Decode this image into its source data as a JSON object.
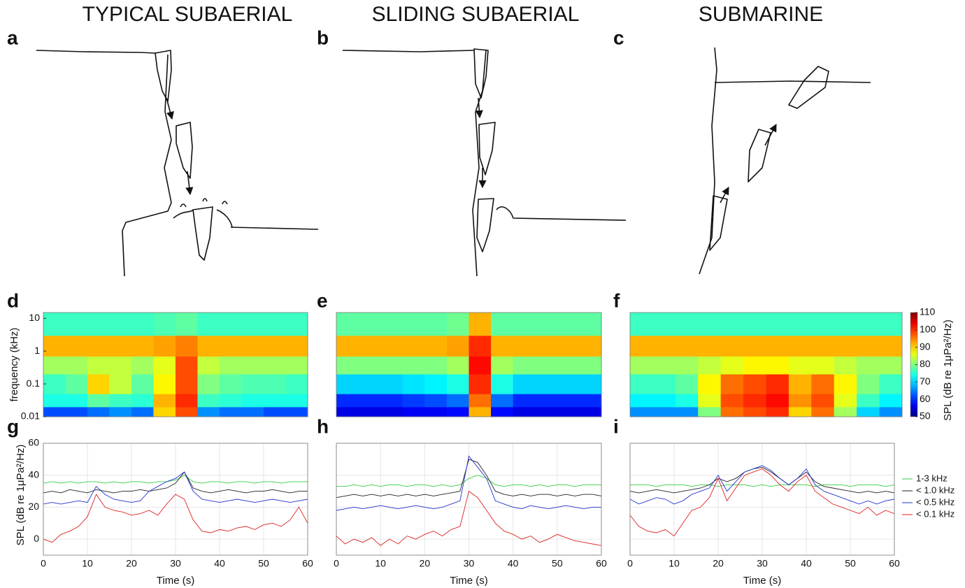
{
  "columns": [
    "TYPICAL SUBAERIAL",
    "SLIDING SUBAERIAL",
    "SUBMARINE"
  ],
  "panel_letters": [
    "a",
    "b",
    "c",
    "d",
    "e",
    "f",
    "g",
    "h",
    "i"
  ],
  "chart_data": [
    {
      "type": "heatmap",
      "ylabel": "frequency (kHz)",
      "yscale": "log",
      "colormap": "jet",
      "xlim": [
        0,
        60
      ],
      "ylim": [
        0.01,
        15
      ],
      "yticks": [
        0.01,
        0.1,
        1,
        10
      ],
      "x_bins": [
        0,
        5,
        10,
        15,
        20,
        25,
        30,
        35,
        40,
        45,
        50,
        55,
        60
      ],
      "y_bins": [
        0.01,
        0.02,
        0.05,
        0.2,
        0.7,
        3,
        15
      ],
      "values": [
        [
          62,
          62,
          64,
          66,
          64,
          90,
          98,
          66,
          64,
          64,
          62,
          62
        ],
        [
          74,
          74,
          78,
          76,
          75,
          92,
          100,
          76,
          75,
          74,
          74,
          74
        ],
        [
          76,
          78,
          90,
          84,
          78,
          88,
          98,
          80,
          78,
          77,
          77,
          76
        ],
        [
          82,
          82,
          84,
          84,
          82,
          86,
          98,
          84,
          82,
          82,
          82,
          82
        ],
        [
          92,
          92,
          92,
          92,
          92,
          93,
          95,
          92,
          92,
          92,
          92,
          92
        ],
        [
          76,
          76,
          76,
          76,
          76,
          77,
          78,
          76,
          76,
          76,
          76,
          76
        ]
      ]
    },
    {
      "type": "heatmap",
      "yscale": "log",
      "colormap": "jet",
      "xlim": [
        0,
        60
      ],
      "ylim": [
        0.01,
        15
      ],
      "x_bins": [
        0,
        5,
        10,
        15,
        20,
        25,
        30,
        35,
        40,
        45,
        50,
        55,
        60
      ],
      "y_bins": [
        0.01,
        0.02,
        0.05,
        0.2,
        0.7,
        3,
        15
      ],
      "values": [
        [
          56,
          56,
          56,
          57,
          57,
          58,
          92,
          58,
          56,
          56,
          56,
          56
        ],
        [
          60,
          60,
          60,
          61,
          62,
          64,
          96,
          64,
          60,
          60,
          60,
          60
        ],
        [
          70,
          70,
          70,
          71,
          72,
          74,
          100,
          74,
          70,
          70,
          70,
          70
        ],
        [
          80,
          80,
          80,
          80,
          80,
          82,
          102,
          82,
          80,
          80,
          80,
          80
        ],
        [
          92,
          92,
          92,
          92,
          92,
          93,
          100,
          92,
          92,
          92,
          92,
          92
        ],
        [
          78,
          78,
          78,
          78,
          78,
          79,
          92,
          78,
          78,
          78,
          78,
          78
        ]
      ]
    },
    {
      "type": "heatmap",
      "yscale": "log",
      "colormap": "jet",
      "xlim": [
        0,
        60
      ],
      "ylim": [
        0.01,
        15
      ],
      "x_bins": [
        0,
        5,
        10,
        15,
        20,
        25,
        30,
        35,
        40,
        45,
        50,
        55,
        60
      ],
      "y_bins": [
        0.01,
        0.02,
        0.05,
        0.2,
        0.7,
        3,
        15
      ],
      "values": [
        [
          66,
          66,
          66,
          80,
          96,
          98,
          100,
          90,
          96,
          82,
          70,
          66
        ],
        [
          72,
          72,
          74,
          86,
          98,
          100,
          102,
          94,
          98,
          86,
          76,
          72
        ],
        [
          76,
          76,
          78,
          88,
          96,
          98,
          100,
          92,
          96,
          88,
          80,
          76
        ],
        [
          82,
          82,
          82,
          84,
          86,
          88,
          88,
          86,
          86,
          84,
          82,
          82
        ],
        [
          92,
          92,
          92,
          92,
          92,
          92,
          92,
          92,
          92,
          92,
          92,
          92
        ],
        [
          76,
          76,
          76,
          76,
          76,
          76,
          76,
          76,
          76,
          76,
          76,
          76
        ]
      ]
    },
    {
      "type": "line",
      "xlabel": "Time (s)",
      "ylabel": "SPL (dB re 1μPa²/Hz)",
      "grid": true,
      "show_ytick_labels": true,
      "xlim": [
        0,
        60
      ],
      "xticks": [
        0,
        10,
        20,
        30,
        40,
        50,
        60
      ],
      "ylim": [
        -10,
        60
      ],
      "yticks": [
        0,
        20,
        40,
        60
      ],
      "x": [
        0,
        2,
        4,
        6,
        8,
        10,
        12,
        14,
        16,
        18,
        20,
        22,
        24,
        26,
        28,
        30,
        32,
        34,
        36,
        38,
        40,
        42,
        44,
        46,
        48,
        50,
        52,
        54,
        56,
        58,
        60
      ],
      "series": [
        {
          "color": "#33cc44",
          "values": [
            35,
            36,
            35,
            36,
            35,
            36,
            36,
            35,
            36,
            35,
            36,
            36,
            35,
            36,
            36,
            37,
            40,
            36,
            35,
            36,
            36,
            35,
            36,
            36,
            35,
            36,
            36,
            35,
            36,
            36,
            36
          ]
        },
        {
          "color": "#222222",
          "values": [
            29,
            30,
            29,
            31,
            30,
            29,
            31,
            30,
            29,
            30,
            30,
            31,
            30,
            31,
            32,
            35,
            42,
            32,
            30,
            29,
            30,
            31,
            30,
            29,
            30,
            30,
            31,
            30,
            29,
            30,
            30
          ]
        },
        {
          "color": "#2233cc",
          "values": [
            22,
            23,
            22,
            23,
            24,
            23,
            33,
            28,
            25,
            24,
            23,
            24,
            30,
            33,
            36,
            38,
            42,
            30,
            25,
            24,
            23,
            24,
            25,
            24,
            23,
            24,
            25,
            24,
            23,
            24,
            25
          ]
        },
        {
          "color": "#dd2222",
          "values": [
            0,
            -2,
            3,
            5,
            8,
            14,
            28,
            20,
            18,
            17,
            15,
            16,
            18,
            15,
            22,
            28,
            25,
            12,
            5,
            4,
            6,
            5,
            7,
            8,
            6,
            9,
            10,
            8,
            12,
            20,
            10
          ]
        }
      ]
    },
    {
      "type": "line",
      "xlabel": "Time (s)",
      "grid": true,
      "show_ytick_labels": false,
      "xlim": [
        0,
        60
      ],
      "xticks": [
        0,
        10,
        20,
        30,
        40,
        50,
        60
      ],
      "ylim": [
        -10,
        60
      ],
      "yticks": [
        0,
        20,
        40,
        60
      ],
      "x": [
        0,
        2,
        4,
        6,
        8,
        10,
        12,
        14,
        16,
        18,
        20,
        22,
        24,
        26,
        28,
        30,
        32,
        34,
        36,
        38,
        40,
        42,
        44,
        46,
        48,
        50,
        52,
        54,
        56,
        58,
        60
      ],
      "series": [
        {
          "color": "#33cc44",
          "values": [
            33,
            33,
            34,
            33,
            34,
            33,
            34,
            34,
            33,
            34,
            34,
            33,
            34,
            33,
            34,
            38,
            40,
            38,
            34,
            33,
            34,
            34,
            33,
            34,
            33,
            34,
            34,
            33,
            34,
            34,
            34
          ]
        },
        {
          "color": "#222222",
          "values": [
            26,
            27,
            28,
            27,
            28,
            27,
            28,
            27,
            28,
            27,
            28,
            27,
            28,
            29,
            30,
            50,
            48,
            40,
            30,
            28,
            27,
            28,
            27,
            28,
            28,
            27,
            28,
            27,
            28,
            28,
            27
          ]
        },
        {
          "color": "#2233cc",
          "values": [
            18,
            19,
            20,
            19,
            20,
            21,
            20,
            19,
            20,
            21,
            20,
            19,
            20,
            22,
            24,
            52,
            45,
            38,
            24,
            22,
            20,
            19,
            21,
            20,
            19,
            20,
            21,
            20,
            19,
            20,
            20
          ]
        },
        {
          "color": "#dd2222",
          "values": [
            2,
            -3,
            0,
            -2,
            1,
            -4,
            0,
            -3,
            2,
            0,
            3,
            5,
            2,
            6,
            8,
            30,
            26,
            18,
            10,
            5,
            3,
            0,
            2,
            -2,
            0,
            3,
            1,
            -1,
            -2,
            -3,
            -4
          ]
        }
      ]
    },
    {
      "type": "line",
      "xlabel": "Time (s)",
      "grid": true,
      "show_ytick_labels": false,
      "legend": "outside-right",
      "xlim": [
        0,
        60
      ],
      "xticks": [
        0,
        10,
        20,
        30,
        40,
        50,
        60
      ],
      "ylim": [
        -10,
        60
      ],
      "yticks": [
        0,
        20,
        40,
        60
      ],
      "x": [
        0,
        2,
        4,
        6,
        8,
        10,
        12,
        14,
        16,
        18,
        20,
        22,
        24,
        26,
        28,
        30,
        32,
        34,
        36,
        38,
        40,
        42,
        44,
        46,
        48,
        50,
        52,
        54,
        56,
        58,
        60
      ],
      "series": [
        {
          "name": "1-3 kHz",
          "color": "#33cc44",
          "values": [
            34,
            34,
            34,
            33,
            34,
            34,
            34,
            33,
            34,
            34,
            33,
            34,
            34,
            34,
            33,
            34,
            33,
            34,
            34,
            34,
            34,
            33,
            34,
            34,
            34,
            33,
            34,
            34,
            34,
            33,
            34
          ]
        },
        {
          "name": "< 1.0 kHz",
          "color": "#222222",
          "values": [
            30,
            29,
            30,
            31,
            30,
            29,
            30,
            31,
            32,
            34,
            38,
            36,
            38,
            42,
            44,
            45,
            42,
            38,
            34,
            38,
            42,
            36,
            33,
            32,
            31,
            30,
            29,
            30,
            29,
            30,
            29
          ]
        },
        {
          "name": "< 0.5 kHz",
          "color": "#2233cc",
          "values": [
            25,
            22,
            24,
            26,
            25,
            22,
            24,
            28,
            30,
            32,
            40,
            30,
            36,
            42,
            44,
            46,
            43,
            38,
            34,
            38,
            44,
            34,
            30,
            28,
            26,
            24,
            22,
            24,
            22,
            24,
            25
          ]
        },
        {
          "name": "< 0.1 kHz",
          "color": "#dd2222",
          "values": [
            15,
            8,
            5,
            4,
            6,
            2,
            10,
            18,
            20,
            26,
            38,
            24,
            32,
            40,
            42,
            44,
            40,
            34,
            30,
            36,
            40,
            30,
            26,
            22,
            20,
            18,
            16,
            20,
            15,
            18,
            16
          ]
        }
      ]
    }
  ],
  "colorbar": {
    "label": "SPL (dB re 1μPa²/Hz)",
    "clim": [
      50,
      110
    ],
    "ticks": [
      50,
      60,
      70,
      80,
      90,
      100,
      110
    ]
  }
}
